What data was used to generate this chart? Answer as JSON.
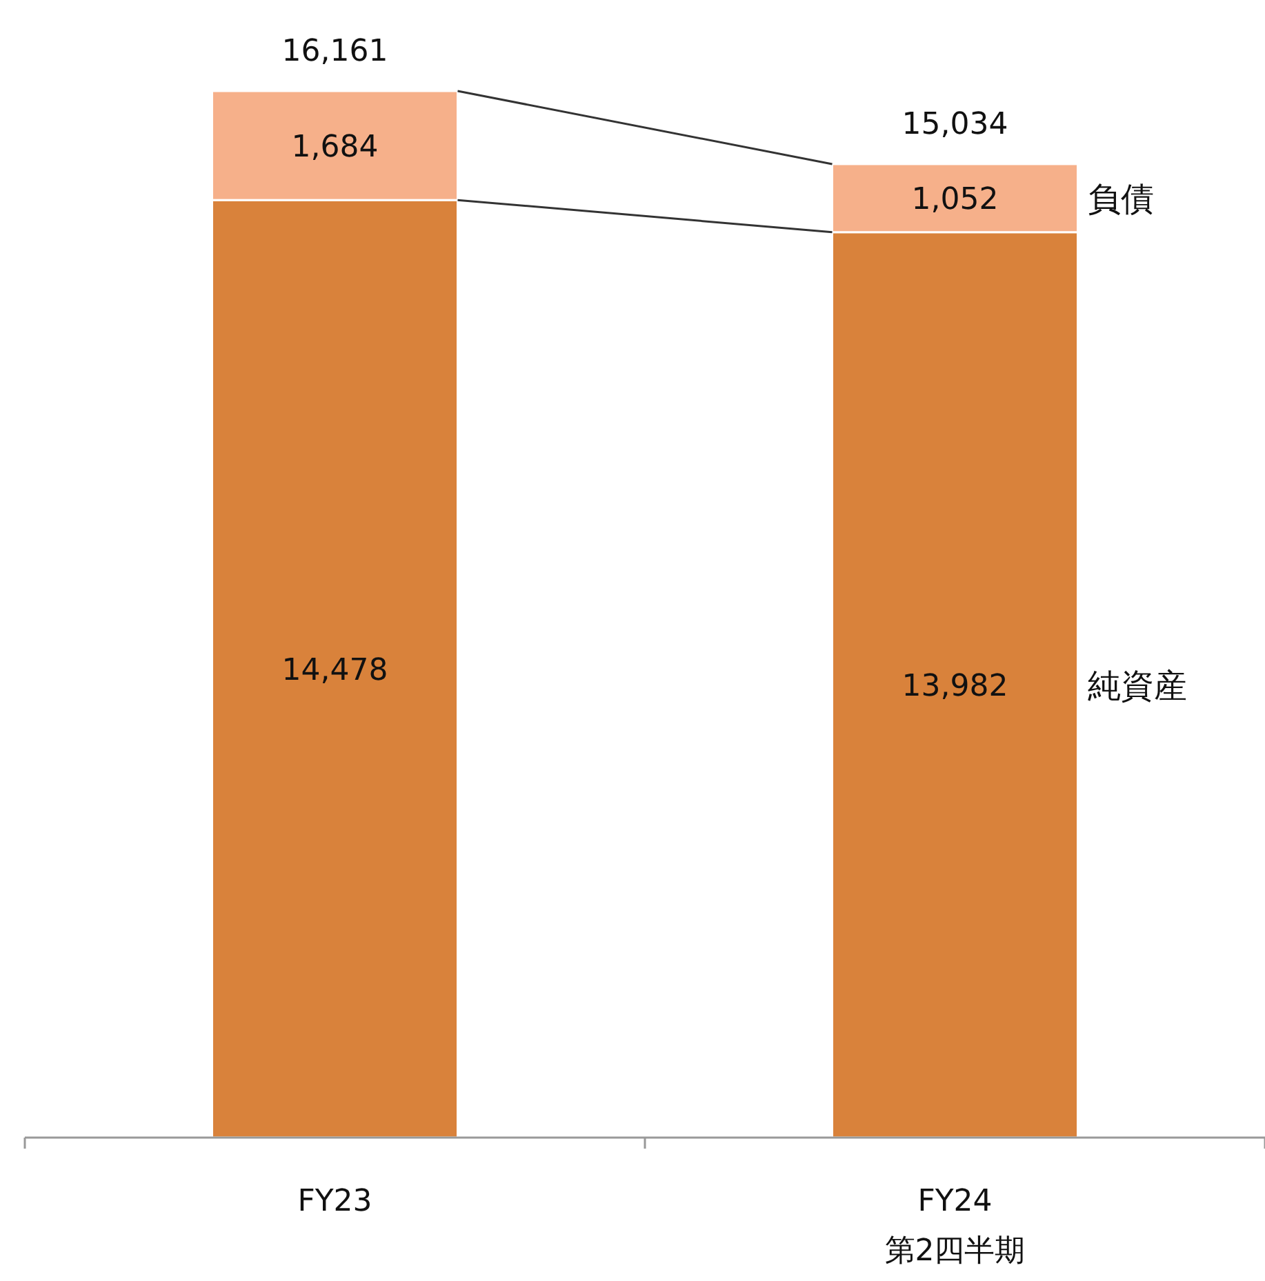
{
  "chart_data": {
    "type": "bar",
    "stacked": true,
    "categories": [
      "FY23\n",
      "FY24\n第2四半期"
    ],
    "series": [
      {
        "name": "純資産",
        "color": "#d9823b",
        "values": [
          14478,
          13982
        ],
        "value_labels": [
          "14,478",
          "13,982"
        ]
      },
      {
        "name": "負債",
        "color": "#f6b08a",
        "values": [
          1684,
          1052
        ],
        "value_labels": [
          "1,684",
          "1,052"
        ]
      }
    ],
    "totals": [
      "16,161",
      "15,034"
    ],
    "legend": false
  }
}
